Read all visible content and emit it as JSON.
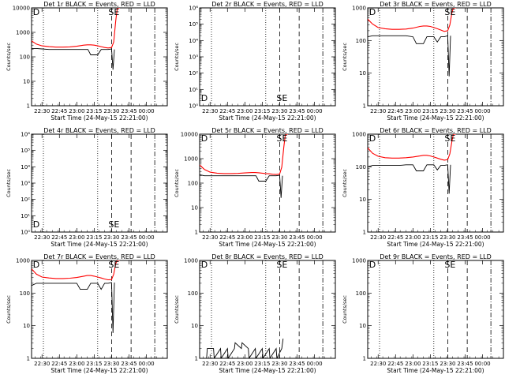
{
  "colors": {
    "events": "#000000",
    "lld": "#ff0000",
    "background": "#ffffff"
  },
  "figure": {
    "xlabel": "Start Time (24-May-15 22:21:00)",
    "ylabel": "Counts/sec",
    "x_tick_labels": [
      "22:30",
      "22:45",
      "23:00",
      "23:15",
      "23:30",
      "23:45",
      "00:00"
    ]
  },
  "chart_data": [
    {
      "type": "line",
      "title": "Det 1r BLACK = Events, RED = LLD",
      "ylog": true,
      "ylim": [
        1,
        10000
      ],
      "ytick_labels": [
        "1",
        "10",
        "100",
        "1000",
        "10000"
      ],
      "markers": [
        "D",
        "S",
        "E"
      ],
      "series": [
        {
          "role": "events",
          "x": [
            22.35,
            22.42,
            22.5,
            22.6,
            22.7,
            22.8,
            22.9,
            23.0,
            23.1,
            23.16,
            23.2,
            23.3,
            23.35,
            23.4,
            23.45,
            23.5,
            23.52,
            23.54
          ],
          "values": [
            220,
            220,
            210,
            200,
            200,
            200,
            200,
            200,
            200,
            200,
            120,
            120,
            200,
            200,
            200,
            210,
            30,
            200
          ]
        },
        {
          "role": "lld",
          "x": [
            22.35,
            22.42,
            22.5,
            22.6,
            22.7,
            22.8,
            22.9,
            23.0,
            23.1,
            23.15,
            23.2,
            23.25,
            23.3,
            23.35,
            23.4,
            23.45,
            23.5,
            23.53,
            23.56,
            23.58,
            23.6,
            23.62
          ],
          "values": [
            450,
            330,
            280,
            260,
            250,
            250,
            255,
            270,
            300,
            310,
            310,
            300,
            280,
            260,
            240,
            230,
            240,
            400,
            3000,
            9000,
            10000,
            10000
          ]
        }
      ]
    },
    {
      "type": "line",
      "title": "Det 2r BLACK = Events, RED = LLD",
      "ylog": true,
      "ylim": [
        1,
        1000000
      ],
      "ytick_labels": [
        "10⁰",
        "10¹",
        "10²",
        "10³",
        "10⁴",
        "10⁵",
        "10⁶"
      ],
      "markers": [
        "D",
        "S",
        "E"
      ],
      "series": []
    },
    {
      "type": "line",
      "title": "Det 3r BLACK = Events, RED = LLD",
      "ylog": true,
      "ylim": [
        1,
        1000
      ],
      "ytick_labels": [
        "1",
        "10",
        "100",
        "1000"
      ],
      "markers": [
        "D",
        "S",
        "E"
      ],
      "series": [
        {
          "role": "events",
          "x": [
            22.35,
            22.42,
            22.5,
            22.6,
            22.7,
            22.8,
            22.9,
            23.0,
            23.05,
            23.15,
            23.2,
            23.3,
            23.35,
            23.4,
            23.45,
            23.5,
            23.52,
            23.54
          ],
          "values": [
            130,
            140,
            140,
            140,
            140,
            140,
            140,
            130,
            80,
            80,
            130,
            130,
            90,
            130,
            130,
            140,
            8,
            140
          ]
        },
        {
          "role": "lld",
          "x": [
            22.35,
            22.42,
            22.5,
            22.6,
            22.7,
            22.8,
            22.9,
            23.0,
            23.1,
            23.15,
            23.2,
            23.25,
            23.3,
            23.35,
            23.4,
            23.45,
            23.5,
            23.53,
            23.56,
            23.58,
            23.6,
            23.62
          ],
          "values": [
            450,
            320,
            250,
            230,
            220,
            220,
            225,
            240,
            270,
            280,
            280,
            270,
            250,
            230,
            210,
            190,
            200,
            300,
            700,
            1000,
            1000,
            1000
          ]
        }
      ]
    },
    {
      "type": "line",
      "title": "Det 4r BLACK = Events, RED = LLD",
      "ylog": true,
      "ylim": [
        1,
        1000000
      ],
      "ytick_labels": [
        "10⁰",
        "10¹",
        "10²",
        "10³",
        "10⁴",
        "10⁵",
        "10⁶"
      ],
      "markers": [
        "D",
        "S",
        "E"
      ],
      "series": []
    },
    {
      "type": "line",
      "title": "Det 5r BLACK = Events, RED = LLD",
      "ylog": true,
      "ylim": [
        1,
        10000
      ],
      "ytick_labels": [
        "1",
        "10",
        "100",
        "1000",
        "10000"
      ],
      "markers": [
        "D",
        "S",
        "E"
      ],
      "series": [
        {
          "role": "events",
          "x": [
            22.35,
            22.42,
            22.5,
            22.6,
            22.7,
            22.8,
            22.9,
            23.0,
            23.1,
            23.16,
            23.2,
            23.3,
            23.35,
            23.4,
            23.45,
            23.5,
            23.52,
            23.54
          ],
          "values": [
            220,
            200,
            200,
            200,
            200,
            200,
            200,
            200,
            200,
            200,
            120,
            120,
            200,
            200,
            200,
            210,
            25,
            200
          ]
        },
        {
          "role": "lld",
          "x": [
            22.35,
            22.42,
            22.5,
            22.6,
            22.7,
            22.8,
            22.9,
            23.0,
            23.1,
            23.15,
            23.2,
            23.25,
            23.3,
            23.35,
            23.4,
            23.45,
            23.5,
            23.53,
            23.56,
            23.58,
            23.6,
            23.62
          ],
          "values": [
            550,
            360,
            280,
            255,
            245,
            245,
            250,
            260,
            270,
            270,
            265,
            255,
            245,
            240,
            230,
            225,
            235,
            450,
            3000,
            9000,
            10000,
            10000
          ]
        }
      ]
    },
    {
      "type": "line",
      "title": "Det 6r BLACK = Events, RED = LLD",
      "ylog": true,
      "ylim": [
        1,
        1000
      ],
      "ytick_labels": [
        "1",
        "10",
        "100",
        "1000"
      ],
      "markers": [
        "D",
        "S",
        "E"
      ],
      "series": [
        {
          "role": "events",
          "x": [
            22.35,
            22.42,
            22.5,
            22.6,
            22.7,
            22.8,
            22.9,
            23.0,
            23.05,
            23.15,
            23.2,
            23.3,
            23.35,
            23.4,
            23.45,
            23.5,
            23.52,
            23.54
          ],
          "values": [
            100,
            110,
            110,
            110,
            110,
            110,
            115,
            115,
            75,
            75,
            115,
            115,
            80,
            110,
            110,
            115,
            15,
            115
          ]
        },
        {
          "role": "lld",
          "x": [
            22.35,
            22.42,
            22.5,
            22.6,
            22.7,
            22.8,
            22.9,
            23.0,
            23.1,
            23.15,
            23.2,
            23.25,
            23.3,
            23.35,
            23.4,
            23.45,
            23.5,
            23.53,
            23.56,
            23.58,
            23.6,
            23.62
          ],
          "values": [
            380,
            260,
            210,
            190,
            185,
            185,
            190,
            200,
            215,
            225,
            225,
            215,
            200,
            185,
            170,
            160,
            165,
            250,
            600,
            1000,
            1000,
            1000
          ]
        }
      ]
    },
    {
      "type": "line",
      "title": "Det 7r BLACK = Events, RED = LLD",
      "ylog": true,
      "ylim": [
        1,
        1000
      ],
      "ytick_labels": [
        "1",
        "10",
        "100",
        "1000"
      ],
      "markers": [
        "D",
        "S",
        "E"
      ],
      "series": [
        {
          "role": "events",
          "x": [
            22.35,
            22.42,
            22.5,
            22.6,
            22.7,
            22.8,
            22.9,
            23.0,
            23.05,
            23.15,
            23.2,
            23.3,
            23.35,
            23.4,
            23.45,
            23.5,
            23.52,
            23.54
          ],
          "values": [
            170,
            200,
            200,
            200,
            200,
            200,
            200,
            200,
            130,
            130,
            200,
            200,
            130,
            200,
            200,
            210,
            6,
            210
          ]
        },
        {
          "role": "lld",
          "x": [
            22.35,
            22.42,
            22.5,
            22.6,
            22.7,
            22.8,
            22.9,
            23.0,
            23.1,
            23.15,
            23.2,
            23.25,
            23.3,
            23.35,
            23.4,
            23.45,
            23.5,
            23.53,
            23.56,
            23.58,
            23.6,
            23.62
          ],
          "values": [
            550,
            380,
            310,
            290,
            280,
            280,
            285,
            300,
            330,
            345,
            345,
            330,
            310,
            290,
            270,
            255,
            260,
            380,
            800,
            1000,
            1000,
            1000
          ]
        }
      ]
    },
    {
      "type": "line",
      "title": "Det 8r BLACK = Events, RED = LLD",
      "ylog": true,
      "ylim": [
        1,
        1000
      ],
      "ytick_labels": [
        "1",
        "10",
        "100",
        "1000"
      ],
      "markers": [
        "D",
        "S",
        "E"
      ],
      "series": [
        {
          "role": "events",
          "x": [
            22.35,
            22.45,
            22.46,
            22.55,
            22.56,
            22.65,
            22.66,
            22.75,
            22.76,
            22.85,
            22.86,
            22.95,
            22.96,
            23.05,
            23.06,
            23.15,
            23.16,
            23.25,
            23.26,
            23.35,
            23.36,
            23.45,
            23.46,
            23.53,
            23.55
          ],
          "values": [
            1,
            1,
            2,
            2,
            1,
            2,
            1,
            2,
            1,
            2,
            3,
            2,
            3,
            2,
            1,
            2,
            1,
            2,
            1,
            2,
            1,
            2,
            1,
            2,
            4
          ]
        }
      ]
    },
    {
      "type": "line",
      "title": "Det 9r BLACK = Events, RED = LLD",
      "ylog": true,
      "ylim": [
        1,
        1000
      ],
      "ytick_labels": [
        "1",
        "10",
        "100",
        "1000"
      ],
      "markers": [
        "D",
        "S",
        "E"
      ],
      "series": []
    }
  ]
}
